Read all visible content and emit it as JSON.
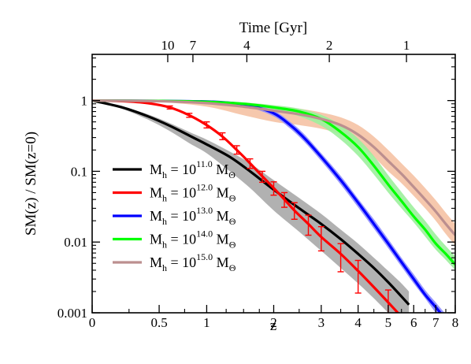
{
  "chart_data": {
    "type": "line",
    "xlabel": "z",
    "ylabel": "SM(z) / SM(z=0)",
    "top_axis_label": "Time [Gyr]",
    "x_scale": "log(1+z)",
    "y_scale": "log",
    "xlim": [
      0,
      8
    ],
    "ylim": [
      0.001,
      4.5
    ],
    "x_ticks": [
      "0",
      "0.5",
      "1",
      "2",
      "3",
      "4",
      "5",
      "6",
      "7",
      "8"
    ],
    "x_tick_values": [
      0,
      0.5,
      1,
      2,
      3,
      4,
      5,
      6,
      7,
      8
    ],
    "y_ticks": [
      "0.001",
      "0.01",
      "0.1",
      "1"
    ],
    "y_tick_values": [
      0.001,
      0.01,
      0.1,
      1
    ],
    "top_ticks": [
      {
        "label": "10",
        "z": 0.58
      },
      {
        "label": "7",
        "z": 0.84
      },
      {
        "label": "4",
        "z": 1.55
      },
      {
        "label": "2",
        "z": 3.2
      },
      {
        "label": "1",
        "z": 5.7
      }
    ],
    "grid": false,
    "legend_position": "left",
    "legend": [
      {
        "prefix": "M",
        "sub": "h",
        "mid": " = 10",
        "sup": "11.0",
        "unit": " M",
        "unit_sub": "Θ"
      },
      {
        "prefix": "M",
        "sub": "h",
        "mid": " = 10",
        "sup": "12.0",
        "unit": " M",
        "unit_sub": "Θ"
      },
      {
        "prefix": "M",
        "sub": "h",
        "mid": " = 10",
        "sup": "13.0",
        "unit": " M",
        "unit_sub": "Θ"
      },
      {
        "prefix": "M",
        "sub": "h",
        "mid": " = 10",
        "sup": "14.0",
        "unit": " M",
        "unit_sub": "Θ"
      },
      {
        "prefix": "M",
        "sub": "h",
        "mid": " = 10",
        "sup": "15.0",
        "unit": " M",
        "unit_sub": "Θ"
      }
    ],
    "series": [
      {
        "color": "#000000",
        "band_color": "#a9a9a9",
        "x": [
          0,
          0.2,
          0.4,
          0.6,
          0.8,
          1.0,
          1.3,
          1.6,
          2.0,
          2.5,
          3.0,
          3.5,
          4.0,
          4.5,
          5.0,
          5.5,
          5.8
        ],
        "y": [
          1.0,
          0.8,
          0.6,
          0.44,
          0.32,
          0.24,
          0.16,
          0.1,
          0.055,
          0.03,
          0.018,
          0.011,
          0.0068,
          0.0043,
          0.0027,
          0.0017,
          0.0013
        ],
        "y_lo": [
          1.0,
          0.76,
          0.54,
          0.37,
          0.25,
          0.18,
          0.1,
          0.058,
          0.028,
          0.014,
          0.0075,
          0.0043,
          0.0026,
          0.0016,
          0.001,
          0.00065,
          0.0005
        ],
        "y_hi": [
          1.0,
          0.82,
          0.64,
          0.48,
          0.36,
          0.28,
          0.19,
          0.13,
          0.075,
          0.042,
          0.025,
          0.015,
          0.0095,
          0.006,
          0.0039,
          0.0026,
          0.002
        ]
      },
      {
        "color": "#ff0000",
        "band_color": null,
        "x": [
          0,
          0.2,
          0.4,
          0.6,
          0.8,
          1.0,
          1.2,
          1.4,
          1.6,
          1.8,
          2.0,
          2.2,
          2.4,
          2.7,
          3.0,
          3.5,
          4.0,
          4.5,
          5.0,
          5.5
        ],
        "y": [
          1.0,
          0.98,
          0.92,
          0.8,
          0.62,
          0.45,
          0.31,
          0.2,
          0.13,
          0.085,
          0.058,
          0.04,
          0.028,
          0.018,
          0.0118,
          0.0068,
          0.0039,
          0.0023,
          0.0014,
          0.00088
        ],
        "err_x": [
          0.6,
          0.8,
          1.0,
          1.2,
          1.4,
          1.6,
          1.8,
          2.0,
          2.2,
          2.4,
          2.7,
          3.0,
          3.5,
          4.0,
          5.0
        ],
        "err_lo": [
          0.76,
          0.58,
          0.41,
          0.28,
          0.175,
          0.11,
          0.07,
          0.046,
          0.031,
          0.021,
          0.0125,
          0.0075,
          0.0038,
          0.0019,
          0.0007
        ],
        "err_hi": [
          0.84,
          0.66,
          0.5,
          0.35,
          0.23,
          0.15,
          0.1,
          0.071,
          0.05,
          0.036,
          0.024,
          0.0165,
          0.0095,
          0.0055,
          0.0021
        ]
      },
      {
        "color": "#0000ff",
        "band_color": "#8c8cff",
        "x": [
          0,
          0.5,
          1.0,
          1.3,
          1.6,
          2.0,
          2.3,
          2.6,
          3.0,
          3.5,
          4.0,
          4.5,
          5.0,
          5.5,
          6.0,
          6.5,
          7.0,
          7.5
        ],
        "y": [
          1.0,
          0.99,
          0.97,
          0.93,
          0.85,
          0.66,
          0.46,
          0.3,
          0.16,
          0.075,
          0.036,
          0.018,
          0.0095,
          0.0052,
          0.003,
          0.0018,
          0.0012,
          0.0008
        ],
        "y_lo": [
          1.0,
          0.98,
          0.94,
          0.89,
          0.8,
          0.6,
          0.41,
          0.265,
          0.14,
          0.065,
          0.031,
          0.0155,
          0.0082,
          0.0045,
          0.0026,
          0.0016,
          0.001,
          0.0007
        ],
        "y_hi": [
          1.0,
          1.0,
          0.99,
          0.96,
          0.9,
          0.72,
          0.51,
          0.34,
          0.18,
          0.086,
          0.041,
          0.021,
          0.011,
          0.006,
          0.0035,
          0.0021,
          0.0014,
          0.00095
        ]
      },
      {
        "color": "#00ff00",
        "band_color": "#9cf09c",
        "x": [
          0,
          0.5,
          1.0,
          1.5,
          2.0,
          2.5,
          3.0,
          3.5,
          4.0,
          4.5,
          5.0,
          5.5,
          6.0,
          6.5,
          7.0,
          7.5,
          8.0
        ],
        "y": [
          1.0,
          0.99,
          0.96,
          0.9,
          0.8,
          0.7,
          0.55,
          0.36,
          0.22,
          0.12,
          0.065,
          0.038,
          0.023,
          0.015,
          0.0095,
          0.0068,
          0.0048
        ],
        "y_lo": [
          1.0,
          0.98,
          0.92,
          0.84,
          0.73,
          0.6,
          0.44,
          0.28,
          0.165,
          0.09,
          0.05,
          0.03,
          0.019,
          0.012,
          0.0078,
          0.0056,
          0.004
        ],
        "y_hi": [
          1.0,
          1.0,
          0.99,
          0.94,
          0.86,
          0.77,
          0.63,
          0.45,
          0.29,
          0.165,
          0.088,
          0.051,
          0.031,
          0.02,
          0.0128,
          0.0088,
          0.0063
        ]
      },
      {
        "color": "#bc8f8f",
        "band_color": "#f5c2a4",
        "x": [
          0,
          0.5,
          1.0,
          1.5,
          2.0,
          2.5,
          3.0,
          3.5,
          4.0,
          4.5,
          5.0,
          5.5,
          6.0,
          6.5,
          7.0,
          7.5,
          8.0
        ],
        "y": [
          1.0,
          0.98,
          0.92,
          0.82,
          0.72,
          0.64,
          0.55,
          0.45,
          0.33,
          0.22,
          0.14,
          0.092,
          0.06,
          0.04,
          0.027,
          0.018,
          0.0125
        ],
        "y_lo": [
          1.0,
          0.95,
          0.82,
          0.62,
          0.5,
          0.45,
          0.4,
          0.33,
          0.24,
          0.16,
          0.1,
          0.068,
          0.045,
          0.03,
          0.02,
          0.013,
          0.009
        ],
        "y_hi": [
          1.0,
          1.0,
          0.98,
          0.92,
          0.85,
          0.77,
          0.68,
          0.58,
          0.45,
          0.31,
          0.2,
          0.13,
          0.087,
          0.058,
          0.039,
          0.026,
          0.018
        ]
      }
    ]
  }
}
